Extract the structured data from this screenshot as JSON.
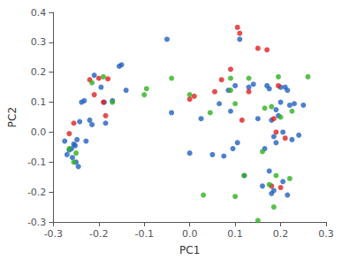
{
  "chart_data": {
    "type": "scatter",
    "xlabel": "PC1",
    "ylabel": "PC2",
    "xlim": [
      -0.3,
      0.3
    ],
    "ylim": [
      -0.3,
      0.4
    ],
    "xticks": [
      -0.3,
      -0.2,
      -0.1,
      {
        "value": 0.0,
        "label": "0.0"
      },
      0.1,
      0.2,
      0.3
    ],
    "yticks": [
      -0.3,
      -0.2,
      -0.1,
      {
        "value": 0.0,
        "label": "0.0"
      },
      0.1,
      0.2,
      0.3,
      0.4
    ],
    "grid": false,
    "series": [
      {
        "color": "#2060c0",
        "x": [
          -0.275,
          -0.27,
          -0.265,
          -0.26,
          -0.258,
          -0.255,
          -0.252,
          -0.25,
          -0.248,
          -0.245,
          -0.242,
          -0.238,
          -0.232,
          -0.228,
          -0.22,
          -0.215,
          -0.21,
          -0.195,
          -0.188,
          -0.185,
          -0.17,
          -0.155,
          -0.15,
          -0.14,
          -0.05,
          -0.04,
          0.0,
          0.025,
          0.05,
          0.065,
          0.075,
          0.085,
          0.09,
          0.095,
          0.1,
          0.105,
          0.11,
          0.12,
          0.13,
          0.14,
          0.15,
          0.16,
          0.165,
          0.17,
          0.175,
          0.175,
          0.18,
          0.18,
          0.185,
          0.185,
          0.19,
          0.19,
          0.195,
          0.2,
          0.2,
          0.205,
          0.205,
          0.21,
          0.215,
          0.215,
          0.22,
          0.225,
          0.23,
          0.24,
          0.25
        ],
        "y": [
          -0.03,
          -0.075,
          -0.06,
          -0.055,
          -0.085,
          -0.04,
          -0.045,
          -0.1,
          -0.025,
          -0.115,
          0.035,
          0.1,
          0.105,
          -0.03,
          0.04,
          0.025,
          0.19,
          0.15,
          0.1,
          0.03,
          0.105,
          0.22,
          0.225,
          0.14,
          0.31,
          0.065,
          -0.07,
          0.045,
          -0.075,
          0.095,
          -0.08,
          0.14,
          0.07,
          -0.055,
          0.155,
          -0.035,
          0.31,
          -0.145,
          0.15,
          0.16,
          0.045,
          -0.18,
          -0.055,
          0.155,
          0.145,
          -0.13,
          -0.205,
          0.04,
          -0.195,
          -0.015,
          -0.035,
          0.075,
          0.055,
          0.15,
          0.1,
          0.0,
          -0.165,
          0.15,
          -0.21,
          0.14,
          0.09,
          -0.025,
          0.095,
          -0.01,
          0.09
        ]
      },
      {
        "color": "#e02020",
        "x": [
          -0.265,
          -0.255,
          -0.22,
          -0.21,
          -0.2,
          -0.19,
          -0.185,
          -0.18,
          0.0,
          0.01,
          0.055,
          0.07,
          0.09,
          0.105,
          0.11,
          0.115,
          0.13,
          0.15,
          0.17,
          0.18,
          0.185,
          0.19,
          0.195,
          0.2,
          0.21
        ],
        "y": [
          -0.005,
          0.03,
          0.175,
          0.125,
          0.18,
          0.1,
          0.055,
          0.178,
          0.11,
          0.12,
          0.135,
          0.175,
          0.21,
          0.35,
          0.33,
          0.04,
          0.135,
          0.28,
          0.275,
          -0.18,
          0.045,
          0.0,
          0.155,
          -0.185,
          -0.02
        ]
      },
      {
        "color": "#30b020",
        "x": [
          -0.265,
          -0.255,
          -0.25,
          -0.215,
          -0.19,
          -0.17,
          -0.1,
          -0.095,
          -0.04,
          0.0,
          0.03,
          0.045,
          0.09,
          0.09,
          0.1,
          0.1,
          0.12,
          0.13,
          0.15,
          0.16,
          0.165,
          0.175,
          0.18,
          0.185,
          0.19,
          0.195,
          0.2,
          0.22,
          0.225,
          0.26
        ],
        "y": [
          -0.055,
          -0.1,
          -0.07,
          0.165,
          0.185,
          0.1,
          0.125,
          0.145,
          0.18,
          0.125,
          -0.21,
          0.065,
          0.18,
          0.14,
          -0.215,
          0.095,
          -0.145,
          0.18,
          -0.295,
          -0.065,
          0.08,
          -0.175,
          0.085,
          -0.25,
          -0.145,
          0.185,
          0.05,
          -0.155,
          0.07,
          0.185
        ]
      }
    ]
  }
}
